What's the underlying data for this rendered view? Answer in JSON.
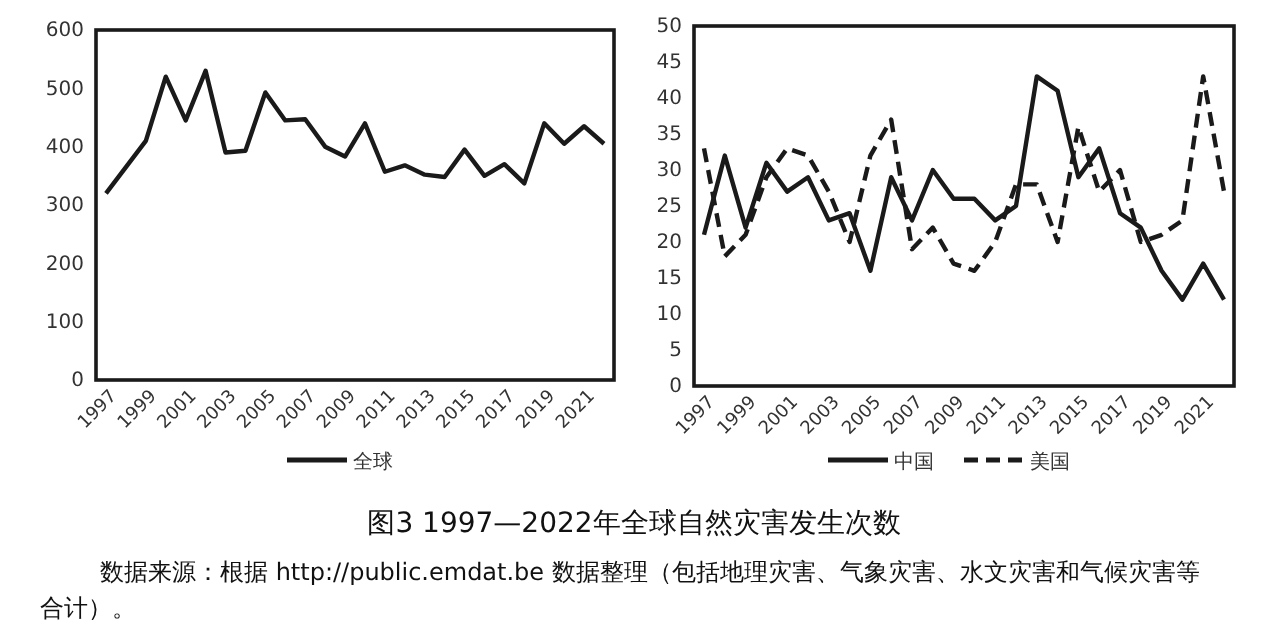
{
  "chart_data": [
    {
      "type": "line",
      "title": "图3 1997—2022年全球自然灾害发生次数",
      "annotations": [
        "数据来源：根据 http://public.emdat.be 数据整理（包括地理灾害、气象灾害、水文灾害和气候灾害等合计）。"
      ],
      "categories": [
        "1997",
        null,
        "1999",
        null,
        "2001",
        null,
        "2003",
        null,
        "2005",
        null,
        "2007",
        null,
        "2009",
        null,
        "2011",
        null,
        "2013",
        null,
        "2015",
        null,
        "2017",
        null,
        "2019",
        null,
        "2021",
        null
      ],
      "series": [
        {
          "name": "全球",
          "color": "#1a1a1a",
          "line_style": "solid",
          "values": [
            320,
            365,
            410,
            520,
            445,
            530,
            390,
            393,
            493,
            445,
            447,
            400,
            383,
            440,
            357,
            368,
            352,
            348,
            395,
            350,
            370,
            337,
            440,
            405,
            435,
            405
          ]
        }
      ],
      "ylim": [
        0,
        600
      ],
      "yticks": [
        0,
        100,
        200,
        300,
        400,
        500,
        600
      ],
      "grid": false,
      "legend": "bottom",
      "marker": "none"
    },
    {
      "type": "line",
      "categories": [
        "1997",
        null,
        "1999",
        null,
        "2001",
        null,
        "2003",
        null,
        "2005",
        null,
        "2007",
        null,
        "2009",
        null,
        "2011",
        null,
        "2013",
        null,
        "2015",
        null,
        "2017",
        null,
        "2019",
        null,
        "2021",
        null
      ],
      "series": [
        {
          "name": "中国",
          "color": "#1a1a1a",
          "line_style": "solid",
          "values": [
            21,
            32,
            22,
            31,
            27,
            29,
            23,
            24,
            16,
            29,
            23,
            30,
            26,
            26,
            23,
            25,
            43,
            41,
            29,
            33,
            24,
            22,
            16,
            12,
            17,
            12
          ]
        },
        {
          "name": "美国",
          "color": "#1a1a1a",
          "line_style": "dashed",
          "values": [
            33,
            18,
            21,
            29,
            33,
            32,
            27,
            20,
            32,
            37,
            19,
            22,
            17,
            16,
            20,
            28,
            28,
            20,
            36,
            27,
            30,
            20,
            21,
            23,
            43,
            27
          ]
        }
      ],
      "ylim": [
        0,
        50
      ],
      "yticks": [
        0,
        5,
        10,
        15,
        20,
        25,
        30,
        35,
        40,
        45,
        50
      ],
      "grid": false,
      "legend": "bottom",
      "marker": "none"
    }
  ]
}
